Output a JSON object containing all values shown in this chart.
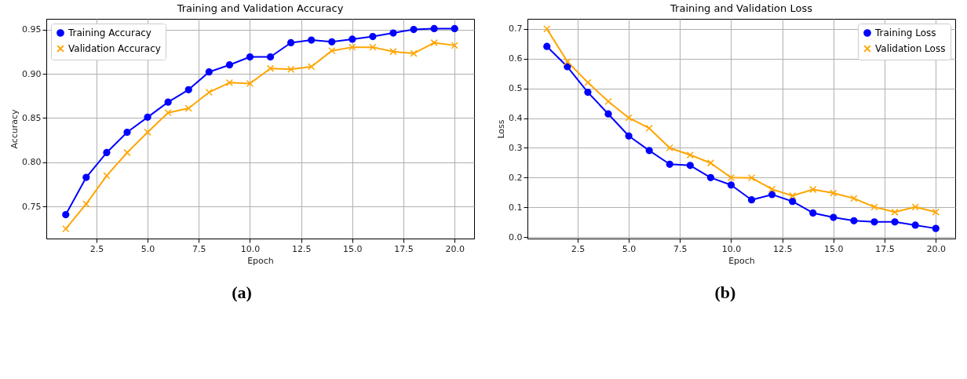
{
  "chart_data": [
    {
      "type": "line",
      "title": "Training and Validation Accuracy",
      "xlabel": "Epoch",
      "ylabel": "Accuracy",
      "annotations": [
        "(a)"
      ],
      "x": [
        1,
        2,
        3,
        4,
        5,
        6,
        7,
        8,
        9,
        10,
        11,
        12,
        13,
        14,
        15,
        16,
        17,
        18,
        19,
        20
      ],
      "series": [
        {
          "name": "Training Accuracy",
          "color": "#0000ff",
          "marker": "circle",
          "values": [
            0.741,
            0.783,
            0.811,
            0.834,
            0.851,
            0.868,
            0.882,
            0.902,
            0.91,
            0.919,
            0.919,
            0.935,
            0.938,
            0.936,
            0.939,
            0.942,
            0.946,
            0.95,
            0.951,
            0.951
          ]
        },
        {
          "name": "Validation Accuracy",
          "color": "#ffa500",
          "marker": "cross",
          "values": [
            0.725,
            0.753,
            0.785,
            0.811,
            0.834,
            0.856,
            0.861,
            0.879,
            0.89,
            0.889,
            0.906,
            0.905,
            0.908,
            0.926,
            0.93,
            0.93,
            0.925,
            0.923,
            0.935,
            0.932
          ]
        }
      ],
      "xlim": [
        0.05,
        20.95
      ],
      "xticks": [
        2.5,
        {
          "value": 5,
          "label": "5.0"
        },
        7.5,
        {
          "value": 10,
          "label": "10.0"
        },
        12.5,
        {
          "value": 15,
          "label": "15.0"
        },
        17.5,
        {
          "value": 20,
          "label": "20.0"
        }
      ],
      "ylim": [
        0.714,
        0.962
      ],
      "yticks": [
        0.75,
        {
          "value": 0.8,
          "label": "0.80"
        },
        0.85,
        {
          "value": 0.9,
          "label": "0.90"
        },
        0.95
      ],
      "grid": true,
      "legend": "top left",
      "line_style": "solid"
    },
    {
      "type": "line",
      "title": "Training and Validation Loss",
      "xlabel": "Epoch",
      "ylabel": "Loss",
      "annotations": [
        "(b)"
      ],
      "x": [
        1,
        2,
        3,
        4,
        5,
        6,
        7,
        8,
        9,
        10,
        11,
        12,
        13,
        14,
        15,
        16,
        17,
        18,
        19,
        20
      ],
      "series": [
        {
          "name": "Training Loss",
          "color": "#0000ff",
          "marker": "circle",
          "values": [
            0.641,
            0.573,
            0.487,
            0.414,
            0.34,
            0.291,
            0.245,
            0.241,
            0.2,
            0.175,
            0.125,
            0.143,
            0.12,
            0.081,
            0.066,
            0.055,
            0.051,
            0.051,
            0.04,
            0.029
          ]
        },
        {
          "name": "Validation Loss",
          "color": "#ffa500",
          "marker": "cross",
          "values": [
            0.7,
            0.59,
            0.52,
            0.456,
            0.401,
            0.366,
            0.3,
            0.276,
            0.249,
            0.2,
            0.199,
            0.161,
            0.139,
            0.16,
            0.148,
            0.13,
            0.101,
            0.084,
            0.101,
            0.084
          ]
        }
      ],
      "xlim": [
        0.05,
        20.95
      ],
      "xticks": [
        2.5,
        {
          "value": 5,
          "label": "5.0"
        },
        7.5,
        {
          "value": 10,
          "label": "10.0"
        },
        12.5,
        {
          "value": 15,
          "label": "15.0"
        },
        17.5,
        {
          "value": 20,
          "label": "20.0"
        }
      ],
      "ylim": [
        -0.005,
        0.734
      ],
      "yticks": [
        {
          "value": 0,
          "label": "0.0"
        },
        0.1,
        0.2,
        0.3,
        0.4,
        0.5,
        0.6,
        0.7
      ],
      "grid": true,
      "legend": "top right",
      "line_style": "solid"
    }
  ]
}
